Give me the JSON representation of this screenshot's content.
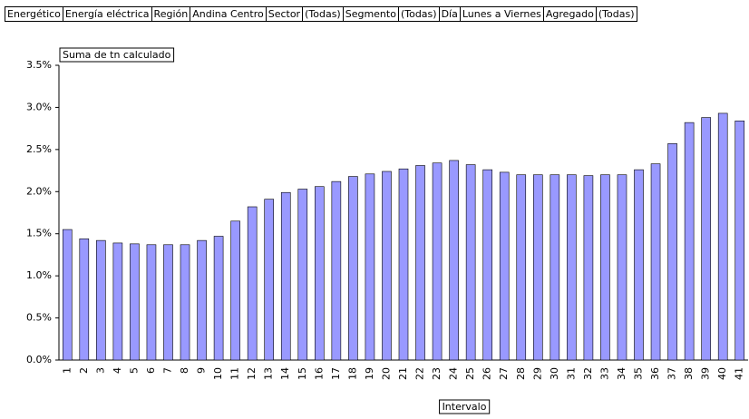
{
  "filters": [
    {
      "label": "Energético",
      "value": "Energía eléctrica"
    },
    {
      "label": "Región",
      "value": "Andina Centro"
    },
    {
      "label": "Sector",
      "value": "(Todas)"
    },
    {
      "label": "Segmento",
      "value": "(Todas)"
    },
    {
      "label": "Día",
      "value": "Lunes a Viernes"
    },
    {
      "label": "Agregado",
      "value": "(Todas)"
    }
  ],
  "chart_data": {
    "type": "bar",
    "x_label": "Intervalo",
    "categories": [
      "1",
      "2",
      "3",
      "4",
      "5",
      "6",
      "7",
      "8",
      "9",
      "10",
      "11",
      "12",
      "13",
      "14",
      "15",
      "16",
      "17",
      "18",
      "19",
      "20",
      "21",
      "22",
      "23",
      "24",
      "25",
      "26",
      "27",
      "28",
      "29",
      "30",
      "31",
      "32",
      "33",
      "34",
      "35",
      "36",
      "37",
      "38",
      "39",
      "40",
      "41"
    ],
    "series": [
      {
        "name": "Suma de tn calculado",
        "color": "#9999ff",
        "values": [
          1.55,
          1.44,
          1.42,
          1.39,
          1.38,
          1.37,
          1.37,
          1.37,
          1.42,
          1.47,
          1.65,
          1.82,
          1.91,
          1.99,
          2.03,
          2.06,
          2.12,
          2.18,
          2.21,
          2.24,
          2.27,
          2.31,
          2.34,
          2.37,
          2.32,
          2.26,
          2.23,
          2.2,
          2.2,
          2.2,
          2.2,
          2.19,
          2.2,
          2.2,
          2.26,
          2.33,
          2.57,
          2.82,
          2.88,
          2.93,
          2.84
        ]
      }
    ],
    "ylim": [
      0,
      3.5
    ],
    "yticks": [
      {
        "value": 0,
        "label": "0.0%"
      },
      {
        "value": 0.5,
        "label": "0.5%"
      },
      {
        "value": 1,
        "label": "1.0%"
      },
      {
        "value": 1.5,
        "label": "1.5%"
      },
      {
        "value": 2,
        "label": "2.0%"
      },
      {
        "value": 2.5,
        "label": "2.5%"
      },
      {
        "value": 3,
        "label": "3.0%"
      },
      {
        "value": 3.5,
        "label": "3.5%"
      }
    ],
    "grid": false
  }
}
